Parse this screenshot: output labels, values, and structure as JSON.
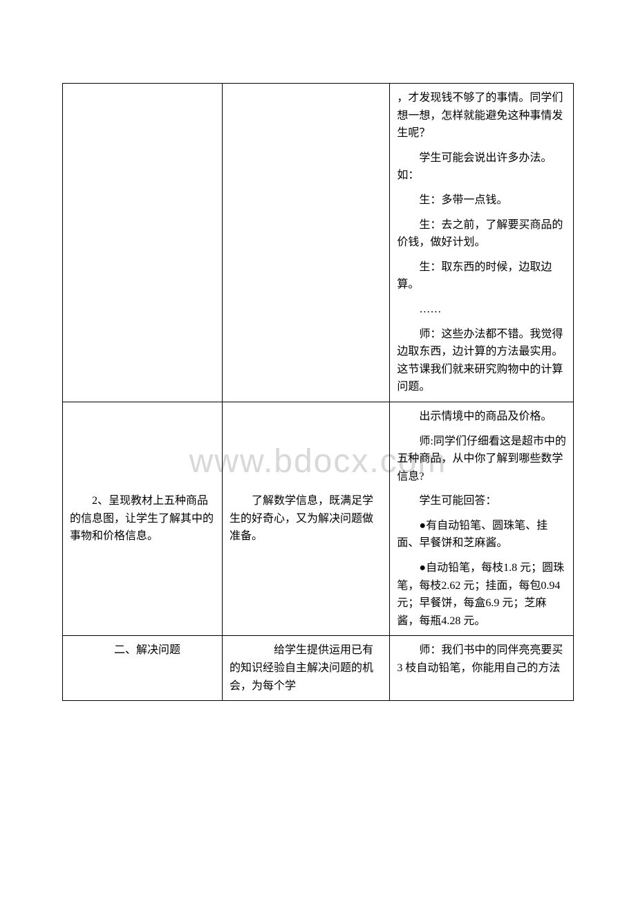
{
  "watermark": "www.bdocx.com",
  "rows": [
    {
      "col1": "",
      "col2": "",
      "col3_paras": [
        "，才发现钱不够了的事情。同学们想一想，怎样就能避免这种事情发生呢？",
        "学生可能会说出许多办法。如：",
        "生：多带一点钱。",
        "生：去之前，了解要买商品的价钱，做好计划。",
        "生：取东西的时候，边取边算。",
        "……",
        "师：这些办法都不错。我觉得边取东西，边计算的方法最实用。这节课我们就来研究购物中的计算问题。"
      ]
    },
    {
      "col1": "　　2、呈现教材上五种商品的信息图，让学生了解其中的事物和价格信息。",
      "col2": "　　了解数学信息，既满足学生的好奇心，又为解决问题做准备。",
      "col3_paras": [
        "出示情境中的商品及价格。",
        "师:同学们仔细看这是超市中的五种商品，从中你了解到哪些数学信息?",
        "学生可能回答：",
        "●有自动铅笔、圆珠笔、挂面、早餐饼和芝麻酱。",
        "●自动铅笔，每枝1.8 元；圆珠笔，每枝2.62 元；挂面，每包0.94 元；早餐饼，每盒6.9 元；芝麻酱，每瓶4.28 元。"
      ]
    },
    {
      "col1": "　　二、解决问题",
      "col2": "　　给学生提供运用已有的知识经验自主解决问题的机会，为每个学",
      "col3_paras": [
        "师：我们书中的同伴亮亮要买 3 枝自动铅笔，你能用自己的方法"
      ]
    }
  ]
}
